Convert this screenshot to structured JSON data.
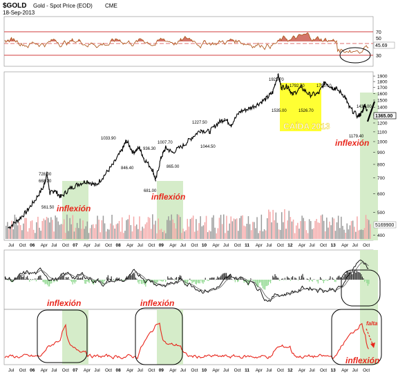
{
  "header": {
    "symbol": "$GOLD",
    "description": "Gold - Spot Price (EOD)",
    "exchange": "CME",
    "date": "18-Sep-2013"
  },
  "colors": {
    "price": "#000000",
    "rsi_line": "#b05a20",
    "rsi_fill": "#c0392b",
    "highlight_green": "#d5ecc9",
    "highlight_yellow": "#ffff33",
    "annotation_red": "#e8261c",
    "volume_up": "#f4a7a7",
    "volume_down": "#9a9a9a",
    "macd_hist": "#90d890",
    "bottom_line": "#e8261c"
  },
  "chart_data": [
    {
      "type": "line",
      "panel": "rsi",
      "levels": [
        70,
        50,
        30
      ],
      "level_labels": [
        "70",
        "50",
        "30"
      ],
      "ylim": [
        10,
        90
      ],
      "last_value_label": "45.69",
      "circle_annotation": "mid-2013 oversold dip"
    },
    {
      "type": "line",
      "panel": "price",
      "title": "Gold - Spot Price (EOD)",
      "x_tick_labels": [
        "Jul",
        "Oct",
        "06",
        "Apr",
        "Jul",
        "Oct",
        "07",
        "Apr",
        "Jul",
        "Oct",
        "08",
        "Apr",
        "Jul",
        "Oct",
        "09",
        "Apr",
        "Jul",
        "Oct",
        "10",
        "Apr",
        "Jul",
        "Oct",
        "11",
        "Apr",
        "Jul",
        "Oct",
        "12",
        "Apr",
        "Jul",
        "Oct",
        "13",
        "Apr",
        "Jul",
        "Oct"
      ],
      "y_ticks": [
        400,
        500,
        600,
        700,
        800,
        900,
        1000,
        1100,
        1200,
        1300,
        1400,
        1500,
        1600,
        1700,
        1800,
        1900
      ],
      "y_tick_labels": [
        "400",
        "500",
        "600",
        "700",
        "800",
        "900",
        "1000",
        "1100",
        "1200",
        "1300",
        "1400",
        "1500",
        "1600",
        "1700",
        "1800",
        "1900"
      ],
      "ylim": [
        380,
        1980
      ],
      "scale": "log",
      "last_value_label": "1365.00",
      "volume_label": "5169900",
      "series": [
        {
          "x": [
            2005.5,
            2005.7,
            2005.9,
            2006.1,
            2006.3,
            2006.38,
            2006.45,
            2006.55,
            2006.7,
            2006.9,
            2007.1,
            2007.3,
            2007.5,
            2007.7,
            2007.9,
            2008.1,
            2008.2,
            2008.35,
            2008.5,
            2008.6,
            2008.8,
            2008.87,
            2009.0,
            2009.1,
            2009.25,
            2009.5,
            2009.7,
            2009.9,
            2010.1,
            2010.3,
            2010.45,
            2010.6,
            2010.8,
            2011.0,
            2011.2,
            2011.4,
            2011.55,
            2011.67,
            2011.75,
            2011.9,
            2012.0,
            2012.2,
            2012.4,
            2012.6,
            2012.75,
            2012.9,
            2013.0,
            2013.2,
            2013.3,
            2013.5,
            2013.6,
            2013.65,
            2013.71
          ],
          "values": [
            430,
            460,
            500,
            560,
            640,
            728,
            600,
            620,
            580,
            630,
            660,
            680,
            650,
            720,
            800,
            920,
            1010,
            900,
            940,
            846,
            760,
            681,
            860,
            940,
            900,
            960,
            1040,
            1120,
            1100,
            1200,
            1250,
            1180,
            1340,
            1380,
            1440,
            1520,
            1620,
            1923,
            1700,
            1720,
            1580,
            1700,
            1580,
            1600,
            1792,
            1700,
            1680,
            1560,
            1400,
            1280,
            1330,
            1434,
            1365
          ]
        }
      ]
    },
    {
      "type": "line",
      "panel": "macd",
      "series": [
        {
          "name": "",
          "values": []
        },
        {
          "name": "",
          "values": []
        }
      ]
    },
    {
      "type": "line",
      "panel": "bottom-indicator",
      "x_tick_labels": [
        "Jul",
        "Oct",
        "06",
        "Apr",
        "Jul",
        "Oct",
        "07",
        "Apr",
        "Jul",
        "Oct",
        "08",
        "Apr",
        "Jul",
        "Oct",
        "09",
        "Apr",
        "Jul",
        "Oct",
        "10",
        "Apr",
        "Jul",
        "Oct",
        "11",
        "Apr",
        "Jul",
        "Oct",
        "12",
        "Apr",
        "Jul",
        "Oct",
        "13",
        "Apr",
        "Jul",
        "Oct"
      ]
    }
  ],
  "price_labels": [
    "728.00",
    "668.20",
    "561.50",
    "1033.90",
    "846.40",
    "936.30",
    "1007.70",
    "681.00",
    "865.00",
    "1227.50",
    "1044.50",
    "1923.70",
    "1535.00",
    "1792.70",
    "1526.70",
    "1798.10",
    "1434.00",
    "1179.40"
  ],
  "annotations": {
    "inflexion": "inflexión",
    "caida": "CAÍDA 2013",
    "falta": "falta"
  }
}
